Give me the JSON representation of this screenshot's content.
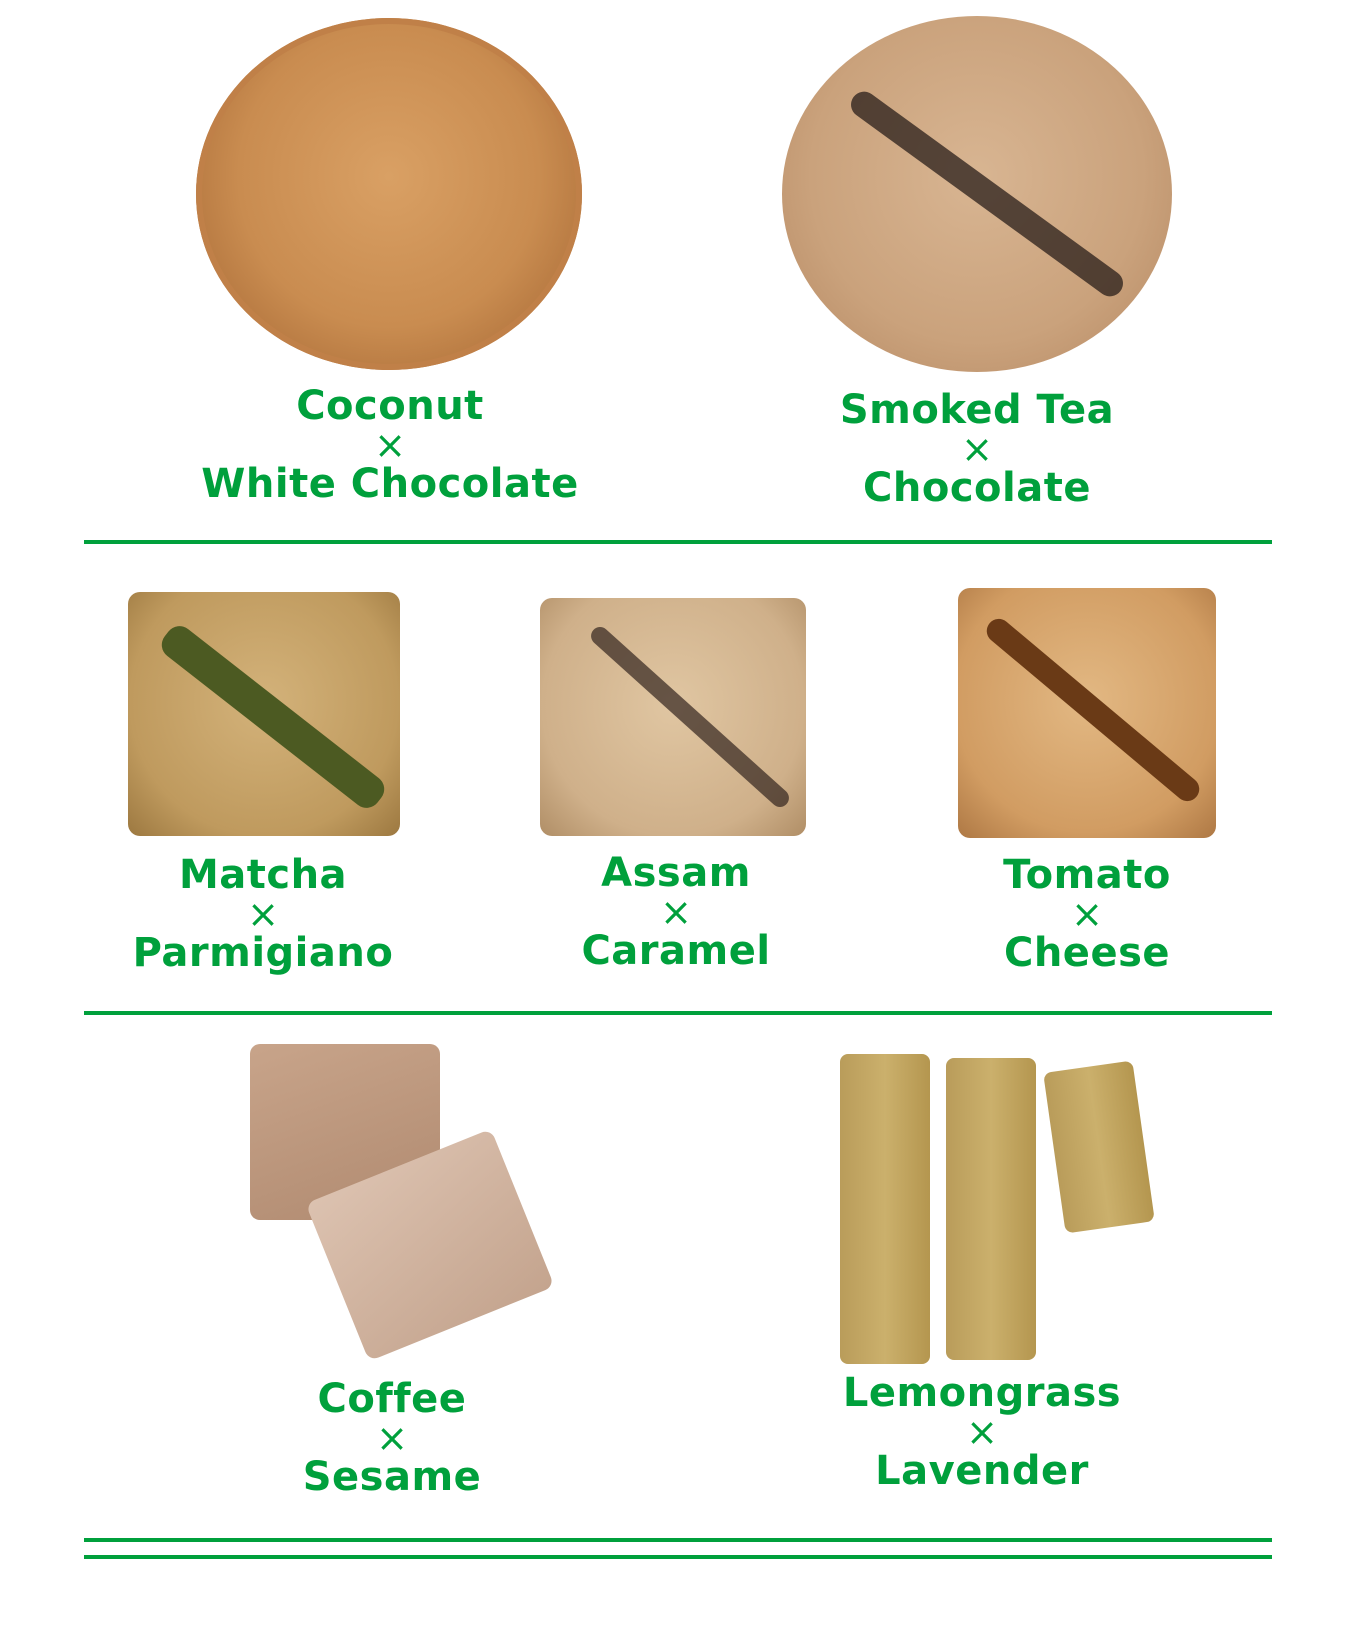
{
  "colors": {
    "accent": "#00a03c"
  },
  "separator": "×",
  "rows": [
    {
      "items": [
        {
          "top": "Coconut",
          "bottom": "White Chocolate"
        },
        {
          "top": "Smoked Tea",
          "bottom": "Chocolate"
        }
      ]
    },
    {
      "items": [
        {
          "top": "Matcha",
          "bottom": "Parmigiano"
        },
        {
          "top": "Assam",
          "bottom": "Caramel"
        },
        {
          "top": "Tomato",
          "bottom": "Cheese"
        }
      ]
    },
    {
      "items": [
        {
          "top": "Coffee",
          "bottom": "Sesame"
        },
        {
          "top": "Lemongrass",
          "bottom": "Lavender"
        }
      ]
    }
  ]
}
